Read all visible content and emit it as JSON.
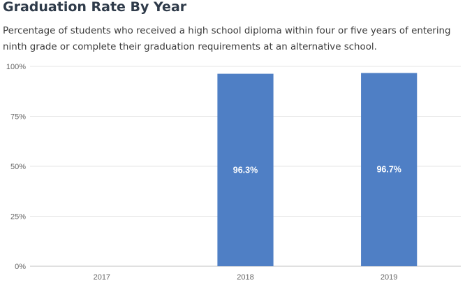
{
  "header": {
    "title": "Graduation Rate By Year",
    "subtitle": "Percentage of students who received a high school diploma within four or five years of entering ninth grade or complete their graduation requirements at an alternative school."
  },
  "chart_data": {
    "type": "bar",
    "categories": [
      "2017",
      "2018",
      "2019"
    ],
    "values": [
      null,
      96.3,
      96.7
    ],
    "data_labels": [
      "",
      "96.3%",
      "96.7%"
    ],
    "y_ticks": [
      {
        "value": 0,
        "label": "0%"
      },
      {
        "value": 25,
        "label": "25%"
      },
      {
        "value": 50,
        "label": "50%"
      },
      {
        "value": 75,
        "label": "75%"
      },
      {
        "value": 100,
        "label": "100%"
      }
    ],
    "ylim": [
      0,
      100
    ],
    "xlabel": "",
    "ylabel": "",
    "grid": true,
    "legend": "none",
    "colors": {
      "bar": "#4f7fc5",
      "grid": "#e6e6e6",
      "axis": "#c0c0c0"
    }
  }
}
